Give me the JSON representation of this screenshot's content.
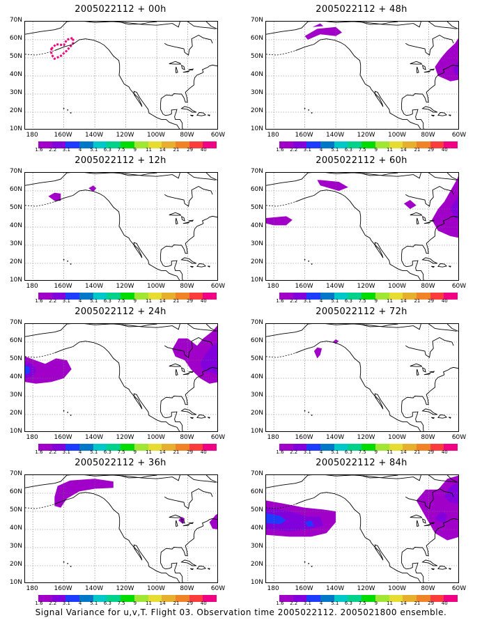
{
  "caption": "Signal Variance for u,v,T. Flight 03. Observation time 2005022112. 2005021800 ensemble.",
  "axes": {
    "y_ticks": [
      "70N",
      "60N",
      "50N",
      "40N",
      "30N",
      "20N",
      "10N"
    ],
    "x_ticks": [
      "180",
      "160W",
      "140W",
      "120W",
      "100W",
      "80W",
      "60W"
    ],
    "lat_range": [
      10,
      70
    ],
    "lon_range": [
      -185,
      -60
    ]
  },
  "colorbar": {
    "labels": [
      "1.6",
      "2.2",
      "3.1",
      "4",
      "5.1",
      "6.3",
      "7.5",
      "9",
      "11",
      "14",
      "21",
      "29",
      "40"
    ],
    "colors": [
      "#a000c8",
      "#8200dc",
      "#1e3cff",
      "#0078c8",
      "#00c8c8",
      "#00d28c",
      "#00dc00",
      "#a0e632",
      "#e6dc32",
      "#e6af2d",
      "#f08228",
      "#fa3c3c",
      "#f00082"
    ]
  },
  "panels": [
    {
      "title": "2005022112 + 00h"
    },
    {
      "title": "2005022112 + 48h"
    },
    {
      "title": "2005022112 + 12h"
    },
    {
      "title": "2005022112 + 60h"
    },
    {
      "title": "2005022112 + 24h"
    },
    {
      "title": "2005022112 + 72h"
    },
    {
      "title": "2005022112 + 36h"
    },
    {
      "title": "2005022112 + 84h"
    }
  ]
}
